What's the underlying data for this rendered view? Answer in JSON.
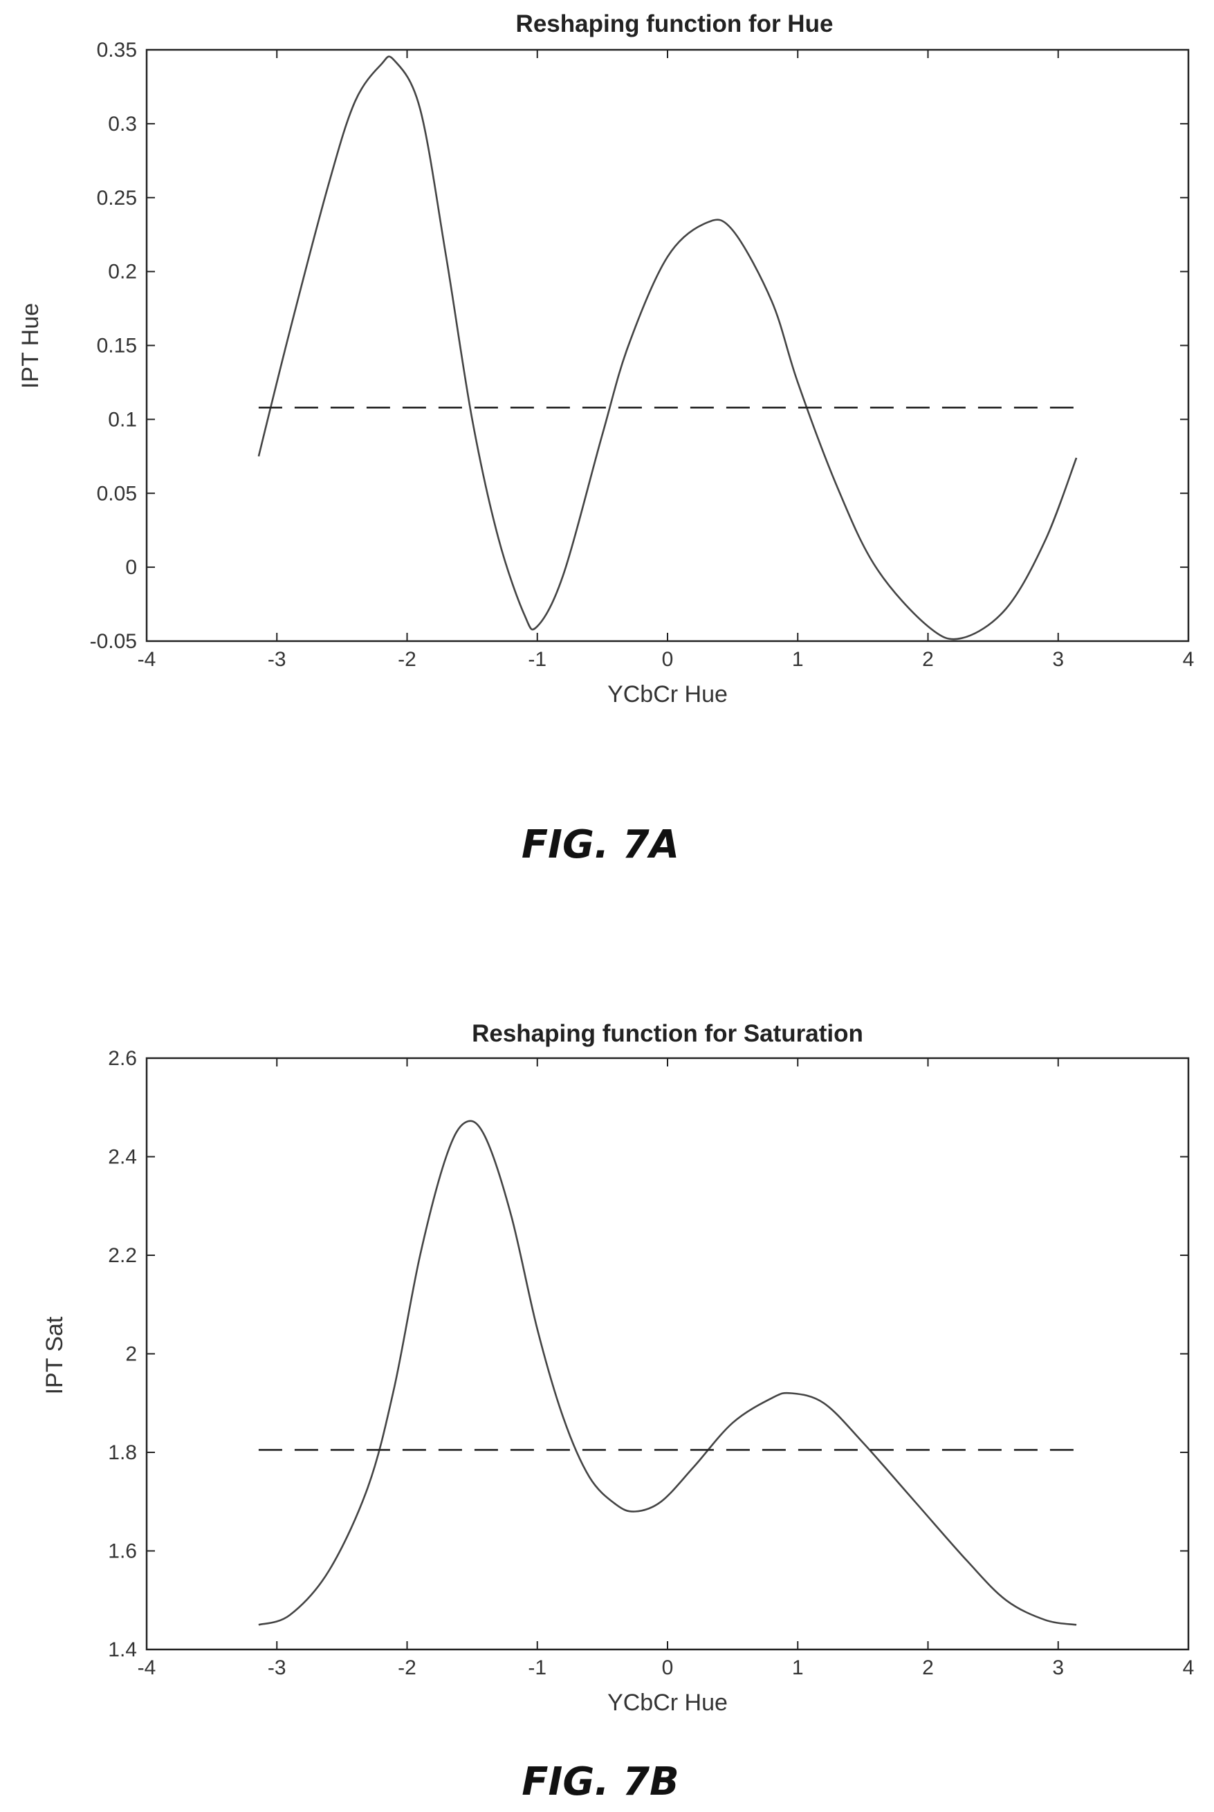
{
  "colors": {
    "curve": "#444444",
    "reference": "#222222",
    "background": "#ffffff"
  },
  "chart_data": [
    {
      "type": "line",
      "title": "Reshaping function for Hue",
      "xlabel": "YCbCr Hue",
      "ylabel": "IPT Hue",
      "caption": "FIG. 7A",
      "xlim": [
        -4,
        4
      ],
      "ylim": [
        -0.05,
        0.35
      ],
      "xticks": [
        -4,
        -3,
        -2,
        -1,
        0,
        1,
        2,
        3,
        4
      ],
      "xtick_labels": [
        "-4",
        "-3",
        "-2",
        "-1",
        "0",
        "1",
        "2",
        "3",
        "4"
      ],
      "yticks": [
        -0.05,
        0,
        0.05,
        0.1,
        0.15,
        0.2,
        0.25,
        0.3,
        0.35
      ],
      "ytick_labels": [
        "-0.05",
        "0",
        "0.05",
        "0.1",
        "0.15",
        "0.2",
        "0.25",
        "0.3",
        "0.35"
      ],
      "grid": false,
      "series": [
        {
          "style": "solid",
          "x": [
            -3.14,
            -2.9,
            -2.6,
            -2.4,
            -2.2,
            -2.1,
            -1.9,
            -1.7,
            -1.5,
            -1.3,
            -1.1,
            -1.0,
            -0.8,
            -0.5,
            -0.3,
            0,
            0.3,
            0.5,
            0.8,
            1.0,
            1.3,
            1.6,
            2.0,
            2.26,
            2.6,
            2.9,
            3.14
          ],
          "y": [
            0.075,
            0.16,
            0.26,
            0.315,
            0.34,
            0.343,
            0.31,
            0.21,
            0.1,
            0.02,
            -0.032,
            -0.04,
            -0.005,
            0.09,
            0.15,
            0.21,
            0.233,
            0.228,
            0.18,
            0.125,
            0.055,
            0.0,
            -0.04,
            -0.048,
            -0.028,
            0.018,
            0.074
          ]
        },
        {
          "style": "dashed",
          "x": [
            -3.14,
            3.14
          ],
          "y": [
            0.108,
            0.108
          ]
        }
      ]
    },
    {
      "type": "line",
      "title": "Reshaping function for Saturation",
      "xlabel": "YCbCr Hue",
      "ylabel": "IPT Sat",
      "caption": "FIG. 7B",
      "xlim": [
        -4,
        4
      ],
      "ylim": [
        1.4,
        2.6
      ],
      "xticks": [
        -4,
        -3,
        -2,
        -1,
        0,
        1,
        2,
        3,
        4
      ],
      "xtick_labels": [
        "-4",
        "-3",
        "-2",
        "-1",
        "0",
        "1",
        "2",
        "3",
        "4"
      ],
      "yticks": [
        1.4,
        1.6,
        1.8,
        2,
        2.2,
        2.4,
        2.6
      ],
      "ytick_labels": [
        "1.4",
        "1.6",
        "1.8",
        "2",
        "2.2",
        "2.4",
        "2.6"
      ],
      "grid": false,
      "series": [
        {
          "style": "solid",
          "x": [
            -3.14,
            -2.9,
            -2.6,
            -2.3,
            -2.1,
            -1.9,
            -1.7,
            -1.55,
            -1.4,
            -1.2,
            -1.0,
            -0.8,
            -0.6,
            -0.4,
            -0.25,
            -0.05,
            0.2,
            0.5,
            0.8,
            0.95,
            1.2,
            1.5,
            1.9,
            2.3,
            2.6,
            2.9,
            3.14
          ],
          "y": [
            1.45,
            1.47,
            1.56,
            1.73,
            1.93,
            2.2,
            2.4,
            2.47,
            2.44,
            2.28,
            2.05,
            1.87,
            1.75,
            1.695,
            1.68,
            1.7,
            1.77,
            1.86,
            1.91,
            1.92,
            1.9,
            1.82,
            1.7,
            1.58,
            1.5,
            1.46,
            1.45
          ]
        },
        {
          "style": "dashed",
          "x": [
            -3.14,
            3.14
          ],
          "y": [
            1.805,
            1.805
          ]
        }
      ]
    }
  ]
}
